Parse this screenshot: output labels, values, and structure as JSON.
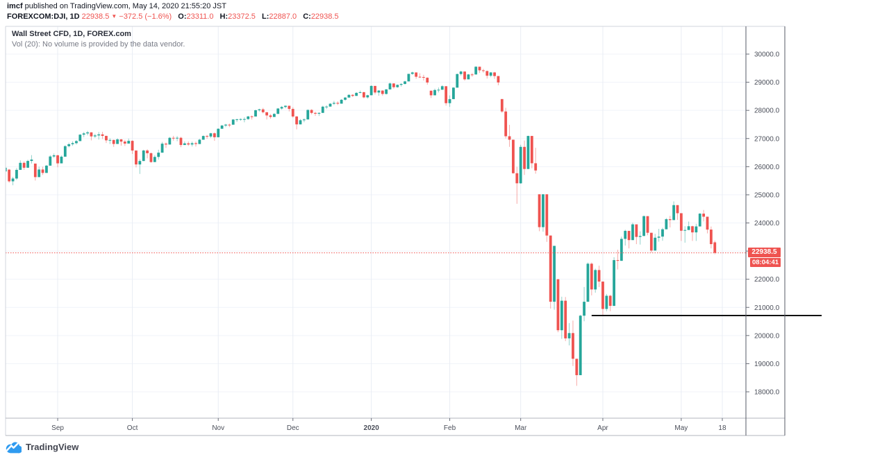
{
  "header": {
    "author": "imcf",
    "byline_rest": " published on TradingView.com, May 14, 2020 21:55:20 JST",
    "symbol": "FOREXCOM:DJI, 1D",
    "last_price": "22938.5",
    "arrow": "▼",
    "change": "−372.5 (−1.6%)",
    "ohlc": [
      {
        "label": "O:",
        "value": "23311.0"
      },
      {
        "label": "H:",
        "value": "23372.5"
      },
      {
        "label": "L:",
        "value": "22887.0"
      },
      {
        "label": "C:",
        "value": "22938.5"
      }
    ]
  },
  "legend": {
    "title": "Wall Street CFD, 1D, FOREX.com",
    "vol_line": "Vol (20): No volume is provided by the data vendor."
  },
  "price_scale": {
    "last_label": "22938.5",
    "countdown": "08:04:41"
  },
  "footer": {
    "logo_text": "TradingView"
  },
  "chart_data": {
    "type": "candlestick",
    "title": "Wall Street CFD, 1D, FOREX.com",
    "symbol": "FOREXCOM:DJI",
    "interval": "1D",
    "ylim": [
      17140,
      30940
    ],
    "grid": true,
    "y_ticks": [
      30000,
      29000,
      28000,
      27000,
      26000,
      25000,
      24000,
      23000,
      22000,
      21000,
      20000,
      19000,
      18000
    ],
    "x_ticks": [
      {
        "label": "Sep",
        "index": 14,
        "bold": false
      },
      {
        "label": "Oct",
        "index": 34,
        "bold": false
      },
      {
        "label": "Nov",
        "index": 57,
        "bold": false
      },
      {
        "label": "Dec",
        "index": 77,
        "bold": false
      },
      {
        "label": "2020",
        "index": 98,
        "bold": true
      },
      {
        "label": "Feb",
        "index": 119,
        "bold": false
      },
      {
        "label": "Mar",
        "index": 138,
        "bold": false
      },
      {
        "label": "Apr",
        "index": 160,
        "bold": false
      },
      {
        "label": "May",
        "index": 181,
        "bold": false
      },
      {
        "label": "18",
        "index": 192,
        "bold": false
      }
    ],
    "current_price": 22938.5,
    "trendline": {
      "price": 20710,
      "start_index": 157
    },
    "colors": {
      "up": "#26a69a",
      "down": "#ef5350",
      "grid": "#f0f3fa",
      "grid_v": "#e9edf4",
      "axis_text": "#4a4e59",
      "frame_light": "#d1d4dc",
      "frame_dark": "#555a64",
      "current_line": "#ef5350",
      "trend": "#111111",
      "label_bg": "#ef5350"
    },
    "candles": [
      [
        25830,
        26120,
        25440,
        25963
      ],
      [
        25895,
        25920,
        25430,
        25479
      ],
      [
        25479,
        25639,
        25339,
        25579
      ],
      [
        25579,
        25950,
        25529,
        25886
      ],
      [
        25886,
        26222,
        25886,
        26136
      ],
      [
        26136,
        26190,
        25887,
        25962
      ],
      [
        25962,
        26246,
        25962,
        26203
      ],
      [
        26203,
        26410,
        26111,
        26252
      ],
      [
        26110,
        26110,
        25507,
        25629
      ],
      [
        25629,
        25999,
        25629,
        25899
      ],
      [
        25899,
        25998,
        25704,
        25778
      ],
      [
        25778,
        26060,
        25778,
        26036
      ],
      [
        26036,
        26408,
        26036,
        26362
      ],
      [
        26362,
        26468,
        26312,
        26403
      ],
      [
        26403,
        26426,
        25978,
        26118
      ],
      [
        26118,
        26398,
        26118,
        26355
      ],
      [
        26355,
        26760,
        26355,
        26728
      ],
      [
        26728,
        26852,
        26685,
        26797
      ],
      [
        26797,
        26900,
        26740,
        26835
      ],
      [
        26835,
        26942,
        26788,
        26909
      ],
      [
        26909,
        27155,
        26909,
        27137
      ],
      [
        27137,
        27230,
        27050,
        27182
      ],
      [
        27182,
        27272,
        27113,
        27219
      ],
      [
        27219,
        27224,
        26934,
        27076
      ],
      [
        27076,
        27166,
        27021,
        27110
      ],
      [
        27110,
        27232,
        26963,
        27147
      ],
      [
        27147,
        27238,
        26984,
        27094
      ],
      [
        27094,
        27099,
        26841,
        26935
      ],
      [
        26935,
        27009,
        26805,
        26949
      ],
      [
        26949,
        26961,
        26704,
        26807
      ],
      [
        26807,
        27012,
        26807,
        26970
      ],
      [
        26970,
        26983,
        26744,
        26891
      ],
      [
        26891,
        26950,
        26737,
        26820
      ],
      [
        26820,
        26998,
        26820,
        26917
      ],
      [
        26917,
        26937,
        26451,
        26573
      ],
      [
        26573,
        26576,
        25974,
        26079
      ],
      [
        26079,
        26265,
        25743,
        26201
      ],
      [
        26201,
        26602,
        26201,
        26574
      ],
      [
        26574,
        26620,
        26296,
        26478
      ],
      [
        26478,
        26508,
        26139,
        26164
      ],
      [
        26164,
        26411,
        26164,
        26346
      ],
      [
        26346,
        26602,
        26250,
        26497
      ],
      [
        26497,
        26880,
        26497,
        26817
      ],
      [
        26817,
        26860,
        26666,
        26787
      ],
      [
        26787,
        27057,
        26787,
        27025
      ],
      [
        27025,
        27095,
        26924,
        27002
      ],
      [
        27002,
        27084,
        26905,
        27026
      ],
      [
        27026,
        27058,
        26692,
        26770
      ],
      [
        26770,
        26898,
        26770,
        26828
      ],
      [
        26828,
        26894,
        26738,
        26788
      ],
      [
        26788,
        26890,
        26718,
        26834
      ],
      [
        26834,
        26891,
        26714,
        26805
      ],
      [
        26805,
        26990,
        26805,
        26958
      ],
      [
        26958,
        27110,
        26958,
        27090
      ],
      [
        27090,
        27126,
        26993,
        27071
      ],
      [
        27071,
        27201,
        27020,
        27186
      ],
      [
        27186,
        27219,
        26918,
        27046
      ],
      [
        27046,
        27360,
        27046,
        27347
      ],
      [
        27347,
        27480,
        27347,
        27462
      ],
      [
        27462,
        27523,
        27407,
        27493
      ],
      [
        27493,
        27530,
        27406,
        27492
      ],
      [
        27492,
        27689,
        27492,
        27675
      ],
      [
        27675,
        27707,
        27590,
        27681
      ],
      [
        27681,
        27714,
        27632,
        27691
      ],
      [
        27691,
        27753,
        27576,
        27691
      ],
      [
        27691,
        27806,
        27666,
        27784
      ],
      [
        27784,
        27821,
        27675,
        27782
      ],
      [
        27782,
        28024,
        27782,
        28005
      ],
      [
        28005,
        28060,
        27956,
        28036
      ],
      [
        28036,
        28090,
        27894,
        27934
      ],
      [
        27934,
        27940,
        27675,
        27821
      ],
      [
        27821,
        27870,
        27705,
        27766
      ],
      [
        27766,
        27899,
        27766,
        27875
      ],
      [
        27875,
        28085,
        27875,
        28066
      ],
      [
        28066,
        28156,
        28024,
        28121
      ],
      [
        28121,
        28175,
        28075,
        28164
      ],
      [
        28164,
        28164,
        27963,
        28051
      ],
      [
        28051,
        28110,
        27740,
        27783
      ],
      [
        27783,
        27800,
        27325,
        27503
      ],
      [
        27503,
        27690,
        27503,
        27650
      ],
      [
        27650,
        27719,
        27577,
        27678
      ],
      [
        27678,
        28035,
        27678,
        28015
      ],
      [
        28015,
        28043,
        27859,
        27910
      ],
      [
        27910,
        27949,
        27804,
        27882
      ],
      [
        27882,
        27930,
        27801,
        27911
      ],
      [
        27911,
        28165,
        27911,
        28132
      ],
      [
        28132,
        28178,
        28048,
        28135
      ],
      [
        28135,
        28254,
        28135,
        28236
      ],
      [
        28236,
        28337,
        28191,
        28267
      ],
      [
        28267,
        28323,
        28190,
        28239
      ],
      [
        28239,
        28401,
        28239,
        28377
      ],
      [
        28377,
        28474,
        28340,
        28455
      ],
      [
        28455,
        28576,
        28455,
        28551
      ],
      [
        28551,
        28576,
        28473,
        28515
      ],
      [
        28515,
        28648,
        28515,
        28622
      ],
      [
        28622,
        28701,
        28608,
        28645
      ],
      [
        28645,
        28664,
        28428,
        28462
      ],
      [
        28462,
        28557,
        28418,
        28538
      ],
      [
        28538,
        28890,
        28538,
        28869
      ],
      [
        28869,
        28872,
        28565,
        28635
      ],
      [
        28635,
        28721,
        28520,
        28703
      ],
      [
        28703,
        28716,
        28523,
        28584
      ],
      [
        28584,
        28760,
        28565,
        28745
      ],
      [
        28745,
        28988,
        28745,
        28957
      ],
      [
        28957,
        28961,
        28772,
        28824
      ],
      [
        28824,
        28920,
        28803,
        28907
      ],
      [
        28907,
        28962,
        28843,
        28939
      ],
      [
        28939,
        29054,
        28924,
        29030
      ],
      [
        29030,
        29300,
        29030,
        29297
      ],
      [
        29297,
        29374,
        29264,
        29348
      ],
      [
        29348,
        29349,
        29121,
        29196
      ],
      [
        29196,
        29320,
        29152,
        29186
      ],
      [
        29186,
        29264,
        29060,
        29160
      ],
      [
        29160,
        29174,
        28914,
        28990
      ],
      [
        28700,
        28700,
        28440,
        28536
      ],
      [
        28536,
        28772,
        28536,
        28723
      ],
      [
        28723,
        28813,
        28638,
        28734
      ],
      [
        28734,
        28894,
        28734,
        28859
      ],
      [
        28859,
        28859,
        28169,
        28256
      ],
      [
        28256,
        28532,
        28124,
        28400
      ],
      [
        28400,
        28825,
        28400,
        28808
      ],
      [
        28808,
        29308,
        28808,
        29291
      ],
      [
        29291,
        29409,
        29236,
        29380
      ],
      [
        29380,
        29387,
        29056,
        29103
      ],
      [
        29103,
        29293,
        29103,
        29277
      ],
      [
        29277,
        29329,
        29196,
        29276
      ],
      [
        29276,
        29568,
        29276,
        29551
      ],
      [
        29551,
        29551,
        29333,
        29423
      ],
      [
        29423,
        29474,
        29341,
        29398
      ],
      [
        29398,
        29413,
        29131,
        29232
      ],
      [
        29232,
        29362,
        29180,
        29348
      ],
      [
        29348,
        29368,
        29121,
        29220
      ],
      [
        29220,
        29220,
        28892,
        28992
      ],
      [
        28402,
        28402,
        27912,
        27961
      ],
      [
        27961,
        28092,
        27002,
        27081
      ],
      [
        27081,
        27487,
        26704,
        26958
      ],
      [
        26958,
        26958,
        25752,
        25767
      ],
      [
        25767,
        25994,
        24681,
        25409
      ],
      [
        25409,
        26777,
        25391,
        26703
      ],
      [
        26703,
        26930,
        25706,
        25917
      ],
      [
        25917,
        27102,
        25917,
        27091
      ],
      [
        27091,
        27097,
        25943,
        26121
      ],
      [
        26121,
        26671,
        25752,
        25865
      ],
      [
        25018,
        25020,
        23706,
        23851
      ],
      [
        23851,
        25020,
        23690,
        25018
      ],
      [
        25018,
        25018,
        23328,
        23553
      ],
      [
        23553,
        23553,
        20958,
        21201
      ],
      [
        21201,
        23189,
        20917,
        23186
      ],
      [
        22000,
        22000,
        20117,
        20188
      ],
      [
        20188,
        21379,
        19882,
        21237
      ],
      [
        21237,
        21369,
        19803,
        19899
      ],
      [
        19899,
        20442,
        19649,
        20087
      ],
      [
        20087,
        20531,
        18917,
        19174
      ],
      [
        19174,
        19174,
        18213,
        18592
      ],
      [
        18592,
        20737,
        18592,
        20705
      ],
      [
        20705,
        21723,
        20507,
        21200
      ],
      [
        21200,
        22595,
        21200,
        22552
      ],
      [
        22552,
        22595,
        21427,
        21637
      ],
      [
        21637,
        22378,
        21522,
        22327
      ],
      [
        22327,
        22482,
        21721,
        21917
      ],
      [
        21917,
        21917,
        20735,
        20944
      ],
      [
        20944,
        21477,
        20862,
        21413
      ],
      [
        21413,
        21447,
        20863,
        21053
      ],
      [
        21053,
        22783,
        21053,
        22680
      ],
      [
        22680,
        23048,
        22348,
        22654
      ],
      [
        22654,
        23513,
        22654,
        23434
      ],
      [
        23434,
        23759,
        23197,
        23719
      ],
      [
        23719,
        23719,
        23096,
        23391
      ],
      [
        23391,
        24009,
        23391,
        23950
      ],
      [
        23950,
        23950,
        23247,
        23504
      ],
      [
        23504,
        23702,
        23232,
        23537
      ],
      [
        23537,
        24265,
        23537,
        24242
      ],
      [
        24242,
        24243,
        23564,
        23651
      ],
      [
        23651,
        23651,
        22942,
        23019
      ],
      [
        23019,
        23613,
        23019,
        23476
      ],
      [
        23476,
        23791,
        23336,
        23515
      ],
      [
        23515,
        23829,
        23367,
        23775
      ],
      [
        23775,
        24175,
        23775,
        24134
      ],
      [
        24134,
        24250,
        23841,
        24102
      ],
      [
        24102,
        24765,
        24102,
        24634
      ],
      [
        24634,
        24634,
        24109,
        24346
      ],
      [
        24346,
        24346,
        23361,
        23724
      ],
      [
        23724,
        23884,
        23300,
        23750
      ],
      [
        23750,
        24050,
        23750,
        23883
      ],
      [
        23883,
        23903,
        23361,
        23665
      ],
      [
        23665,
        23969,
        23361,
        23876
      ],
      [
        23876,
        24349,
        23876,
        24331
      ],
      [
        24331,
        24462,
        24054,
        24222
      ],
      [
        24222,
        24222,
        23630,
        23765
      ],
      [
        23765,
        23873,
        23096,
        23248
      ],
      [
        23311,
        23372.5,
        22887,
        22938.5
      ]
    ]
  }
}
